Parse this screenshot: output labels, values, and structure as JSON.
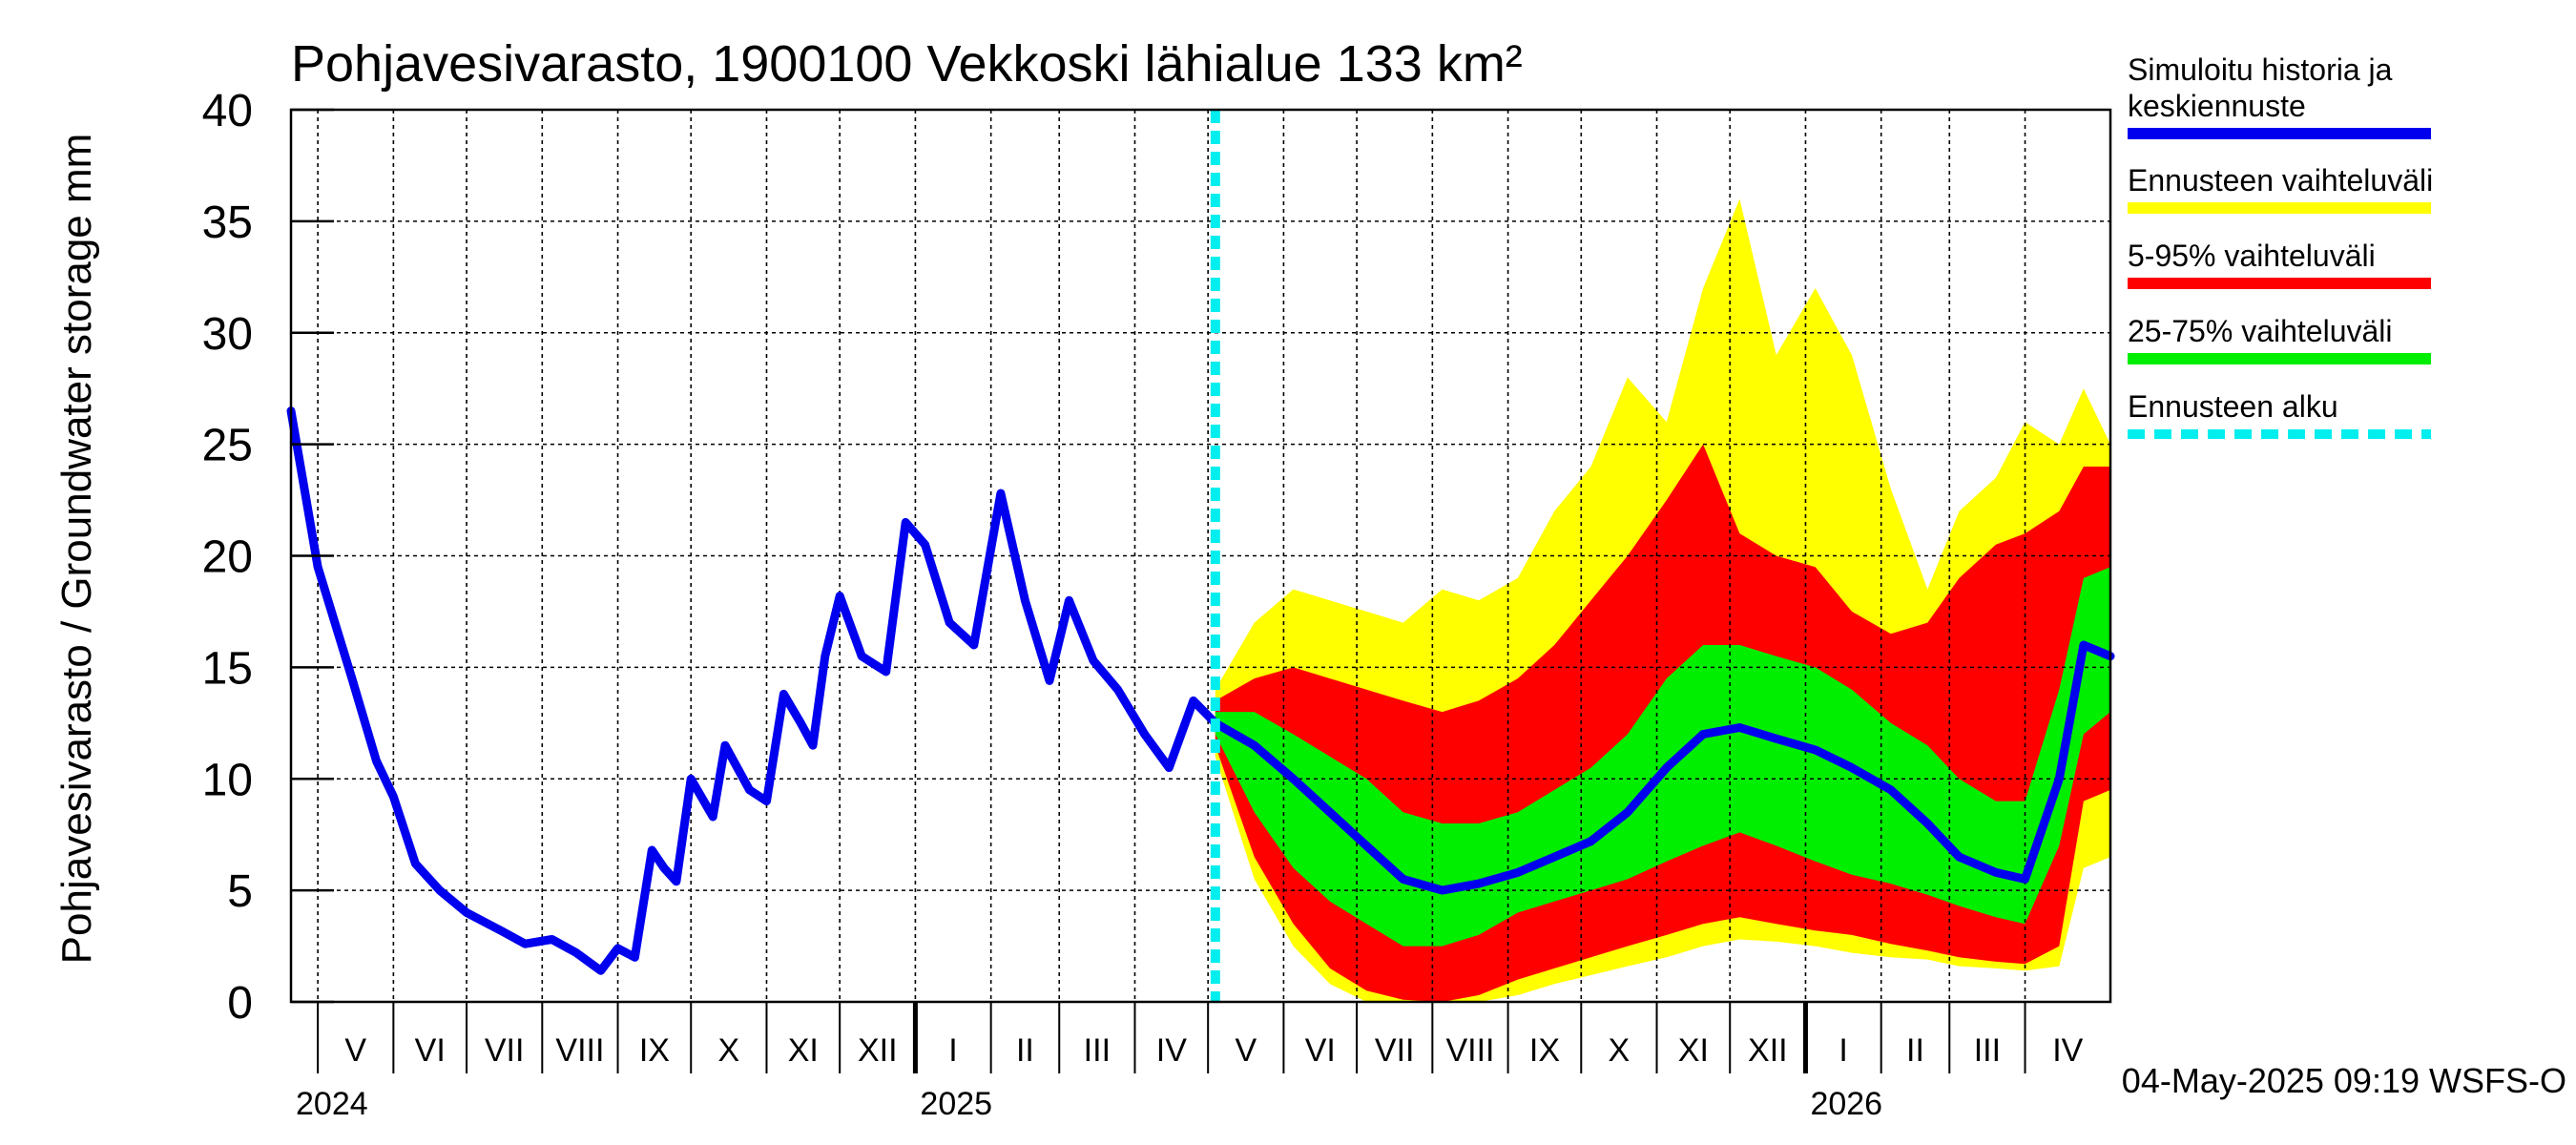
{
  "chart_data": {
    "type": "area",
    "title": "Pohjavesivarasto, 1900100 Vekkoski lähialue 133 km²",
    "ylabel": "Pohjavesivarasto / Groundwater storage   mm",
    "ylim": [
      0,
      40
    ],
    "yticks": [
      0,
      5,
      10,
      15,
      20,
      25,
      30,
      35,
      40
    ],
    "xlim": [
      "2024-04-20",
      "2026-05-06"
    ],
    "x_grid": "monthly",
    "grid": true,
    "months": [
      "V",
      "VI",
      "VII",
      "VIII",
      "IX",
      "X",
      "XI",
      "XII",
      "I",
      "II",
      "III",
      "IV",
      "V",
      "VI",
      "VII",
      "VIII",
      "IX",
      "X",
      "XI",
      "XII",
      "I",
      "II",
      "III",
      "IV"
    ],
    "month_starts": [
      "2024-05-01",
      "2024-06-01",
      "2024-07-01",
      "2024-08-01",
      "2024-09-01",
      "2024-10-01",
      "2024-11-01",
      "2024-12-01",
      "2025-01-01",
      "2025-02-01",
      "2025-03-01",
      "2025-04-01",
      "2025-05-01",
      "2025-06-01",
      "2025-07-01",
      "2025-08-01",
      "2025-09-01",
      "2025-10-01",
      "2025-11-01",
      "2025-12-01",
      "2026-01-01",
      "2026-02-01",
      "2026-03-01",
      "2026-04-01"
    ],
    "years": [
      {
        "label": "2024",
        "start": "2024-04-20"
      },
      {
        "label": "2025",
        "start": "2025-01-01"
      },
      {
        "label": "2026",
        "start": "2026-01-01"
      }
    ],
    "forecast_start": "2025-05-04",
    "legend_position": "right",
    "legend": [
      {
        "label": "Simuloitu historia ja keskiennuste",
        "color": "#0000ee",
        "style": "solid"
      },
      {
        "label": "Ennusteen vaihteluväli",
        "color": "#ffff00",
        "style": "solid"
      },
      {
        "label": "5-95% vaihteluväli",
        "color": "#ff0000",
        "style": "solid"
      },
      {
        "label": "25-75% vaihteluväli",
        "color": "#00ee00",
        "style": "solid"
      },
      {
        "label": "Ennusteen alku",
        "color": "#00eeee",
        "style": "dashed"
      }
    ],
    "history": {
      "name": "Simuloitu historia ja keskiennuste",
      "color": "#0000ee",
      "x": [
        "2024-04-20",
        "2024-05-01",
        "2024-05-15",
        "2024-05-25",
        "2024-06-01",
        "2024-06-10",
        "2024-06-20",
        "2024-07-01",
        "2024-07-15",
        "2024-07-25",
        "2024-08-05",
        "2024-08-15",
        "2024-08-25",
        "2024-09-01",
        "2024-09-08",
        "2024-09-15",
        "2024-09-20",
        "2024-09-25",
        "2024-10-01",
        "2024-10-10",
        "2024-10-15",
        "2024-10-25",
        "2024-11-01",
        "2024-11-08",
        "2024-11-15",
        "2024-11-20",
        "2024-11-25",
        "2024-12-01",
        "2024-12-10",
        "2024-12-20",
        "2024-12-28",
        "2025-01-05",
        "2025-01-15",
        "2025-01-25",
        "2025-02-05",
        "2025-02-15",
        "2025-02-25",
        "2025-03-05",
        "2025-03-15",
        "2025-03-25",
        "2025-04-05",
        "2025-04-15",
        "2025-04-25",
        "2025-05-04"
      ],
      "y": [
        26.5,
        19.5,
        14.5,
        10.8,
        9.2,
        6.2,
        5.0,
        4.0,
        3.2,
        2.6,
        2.8,
        2.2,
        1.4,
        2.4,
        2.0,
        6.8,
        6.0,
        5.4,
        10.0,
        8.3,
        11.5,
        9.5,
        9.0,
        13.8,
        12.5,
        11.5,
        15.5,
        18.2,
        15.5,
        14.8,
        21.5,
        20.5,
        17.0,
        16.0,
        22.8,
        18.0,
        14.4,
        18.0,
        15.3,
        14.0,
        12.0,
        10.5,
        13.5,
        12.5
      ]
    },
    "forecast": {
      "x": [
        "2025-05-04",
        "2025-05-20",
        "2025-06-05",
        "2025-06-20",
        "2025-07-05",
        "2025-07-20",
        "2025-08-05",
        "2025-08-20",
        "2025-09-05",
        "2025-09-20",
        "2025-10-05",
        "2025-10-20",
        "2025-11-05",
        "2025-11-20",
        "2025-12-05",
        "2025-12-20",
        "2026-01-05",
        "2026-01-20",
        "2026-02-05",
        "2026-02-20",
        "2026-03-05",
        "2026-03-20",
        "2026-04-01",
        "2026-04-15",
        "2026-04-25",
        "2026-05-06"
      ],
      "median": [
        12.5,
        11.5,
        10.0,
        8.5,
        7.0,
        5.5,
        5.0,
        5.3,
        5.8,
        6.5,
        7.2,
        8.5,
        10.5,
        12.0,
        12.3,
        11.8,
        11.3,
        10.5,
        9.5,
        8.0,
        6.5,
        5.8,
        5.5,
        10.0,
        16.0,
        15.5
      ],
      "p25": [
        12.0,
        8.5,
        6.0,
        4.5,
        3.5,
        2.5,
        2.5,
        3.0,
        4.0,
        4.5,
        5.0,
        5.5,
        6.3,
        7.0,
        7.6,
        7.0,
        6.3,
        5.7,
        5.3,
        4.8,
        4.3,
        3.8,
        3.5,
        7.0,
        12.0,
        13.0
      ],
      "p75": [
        13.0,
        13.0,
        12.0,
        11.0,
        10.0,
        8.5,
        8.0,
        8.0,
        8.5,
        9.5,
        10.5,
        12.0,
        14.5,
        16.0,
        16.0,
        15.5,
        15.0,
        14.0,
        12.5,
        11.5,
        10.0,
        9.0,
        9.0,
        14.0,
        19.0,
        19.5
      ],
      "p5": [
        11.5,
        6.5,
        3.5,
        1.5,
        0.5,
        0.1,
        0.0,
        0.3,
        1.0,
        1.5,
        2.0,
        2.5,
        3.0,
        3.5,
        3.8,
        3.5,
        3.2,
        3.0,
        2.6,
        2.3,
        2.0,
        1.8,
        1.7,
        2.5,
        9.0,
        9.5
      ],
      "p95": [
        13.5,
        14.5,
        15.0,
        14.5,
        14.0,
        13.5,
        13.0,
        13.5,
        14.5,
        16.0,
        18.0,
        20.0,
        22.5,
        25.0,
        21.0,
        20.0,
        19.5,
        17.5,
        16.5,
        17.0,
        19.0,
        20.5,
        21.0,
        22.0,
        24.0,
        24.0
      ],
      "min": [
        11.0,
        5.5,
        2.5,
        0.8,
        0.0,
        0.0,
        0.0,
        0.0,
        0.3,
        0.8,
        1.2,
        1.6,
        2.0,
        2.5,
        2.8,
        2.7,
        2.5,
        2.2,
        2.0,
        1.9,
        1.6,
        1.5,
        1.4,
        1.6,
        6.0,
        6.5
      ],
      "max": [
        14.0,
        17.0,
        18.5,
        18.0,
        17.5,
        17.0,
        18.5,
        18.0,
        19.0,
        22.0,
        24.0,
        28.0,
        26.0,
        32.0,
        36.0,
        29.0,
        32.0,
        29.0,
        23.0,
        18.5,
        22.0,
        23.5,
        26.0,
        25.0,
        27.5,
        25.0
      ]
    }
  },
  "footer": {
    "timestamp": "04-May-2025 09:19 WSFS-O"
  }
}
